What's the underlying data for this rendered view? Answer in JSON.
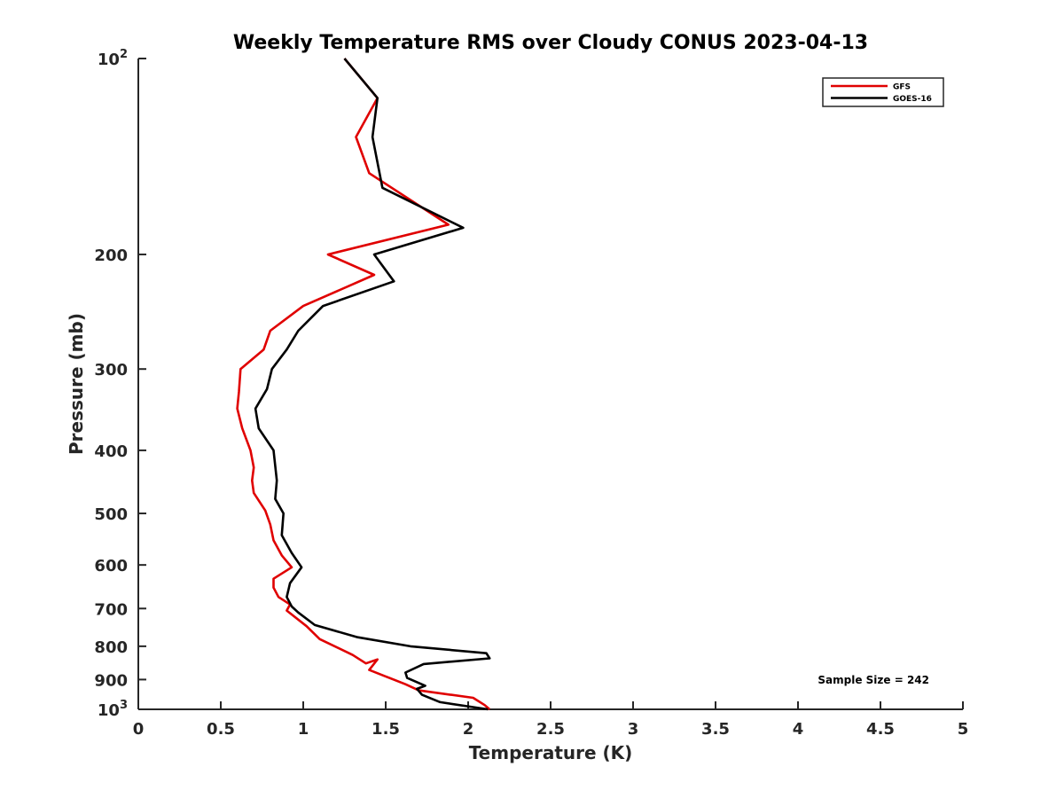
{
  "chart_data": {
    "type": "line",
    "title": "Weekly Temperature RMS over Cloudy CONUS 2023-04-13",
    "xlabel": "Temperature (K)",
    "ylabel": "Pressure (mb)",
    "xlim": [
      0,
      5
    ],
    "ylim": [
      100,
      1000
    ],
    "y_scale": "log",
    "y_reversed": true,
    "grid": false,
    "legend_position": "top-right",
    "x_ticks": [
      {
        "value": 0,
        "label": "0"
      },
      {
        "value": 0.5,
        "label": "0.5"
      },
      {
        "value": 1,
        "label": "1"
      },
      {
        "value": 1.5,
        "label": "1.5"
      },
      {
        "value": 2,
        "label": "2"
      },
      {
        "value": 2.5,
        "label": "2.5"
      },
      {
        "value": 3,
        "label": "3"
      },
      {
        "value": 3.5,
        "label": "3.5"
      },
      {
        "value": 4,
        "label": "4"
      },
      {
        "value": 4.5,
        "label": "4.5"
      },
      {
        "value": 5,
        "label": "5"
      }
    ],
    "y_ticks": [
      {
        "value": 100,
        "base": "10",
        "exp": "2"
      },
      {
        "value": 200,
        "label": "200"
      },
      {
        "value": 300,
        "label": "300"
      },
      {
        "value": 400,
        "label": "400"
      },
      {
        "value": 500,
        "label": "500"
      },
      {
        "value": 600,
        "label": "600"
      },
      {
        "value": 700,
        "label": "700"
      },
      {
        "value": 800,
        "label": "800"
      },
      {
        "value": 900,
        "label": "900"
      },
      {
        "value": 1000,
        "base": "10",
        "exp": "3"
      }
    ],
    "series": [
      {
        "name": "GFS",
        "color": "#e00000",
        "points": [
          [
            1.25,
            100
          ],
          [
            1.45,
            115
          ],
          [
            1.32,
            132
          ],
          [
            1.4,
            150
          ],
          [
            1.88,
            180
          ],
          [
            1.15,
            200
          ],
          [
            1.43,
            215
          ],
          [
            1.0,
            240
          ],
          [
            0.8,
            262
          ],
          [
            0.76,
            280
          ],
          [
            0.62,
            300
          ],
          [
            0.61,
            325
          ],
          [
            0.6,
            345
          ],
          [
            0.63,
            370
          ],
          [
            0.68,
            400
          ],
          [
            0.7,
            425
          ],
          [
            0.69,
            445
          ],
          [
            0.7,
            465
          ],
          [
            0.77,
            495
          ],
          [
            0.8,
            520
          ],
          [
            0.82,
            550
          ],
          [
            0.87,
            580
          ],
          [
            0.93,
            605
          ],
          [
            0.82,
            630
          ],
          [
            0.82,
            650
          ],
          [
            0.85,
            672
          ],
          [
            0.92,
            690
          ],
          [
            0.9,
            705
          ],
          [
            1.02,
            745
          ],
          [
            1.1,
            780
          ],
          [
            1.3,
            825
          ],
          [
            1.38,
            850
          ],
          [
            1.45,
            838
          ],
          [
            1.4,
            870
          ],
          [
            1.5,
            890
          ],
          [
            1.62,
            915
          ],
          [
            1.7,
            935
          ],
          [
            2.03,
            960
          ],
          [
            2.1,
            985
          ],
          [
            2.13,
            1000
          ]
        ]
      },
      {
        "name": "GOES-16",
        "color": "#000000",
        "points": [
          [
            1.25,
            100
          ],
          [
            1.45,
            115
          ],
          [
            1.42,
            132
          ],
          [
            1.48,
            158
          ],
          [
            1.97,
            182
          ],
          [
            1.43,
            200
          ],
          [
            1.55,
            220
          ],
          [
            1.12,
            240
          ],
          [
            1.05,
            250
          ],
          [
            0.97,
            262
          ],
          [
            0.9,
            280
          ],
          [
            0.81,
            300
          ],
          [
            0.78,
            322
          ],
          [
            0.71,
            345
          ],
          [
            0.73,
            370
          ],
          [
            0.82,
            400
          ],
          [
            0.84,
            445
          ],
          [
            0.83,
            475
          ],
          [
            0.88,
            500
          ],
          [
            0.87,
            540
          ],
          [
            0.93,
            575
          ],
          [
            0.99,
            605
          ],
          [
            0.92,
            640
          ],
          [
            0.9,
            672
          ],
          [
            0.93,
            695
          ],
          [
            0.97,
            710
          ],
          [
            1.07,
            742
          ],
          [
            1.33,
            775
          ],
          [
            1.65,
            800
          ],
          [
            2.11,
            820
          ],
          [
            2.13,
            835
          ],
          [
            1.73,
            852
          ],
          [
            1.62,
            878
          ],
          [
            1.63,
            895
          ],
          [
            1.74,
            920
          ],
          [
            1.69,
            930
          ],
          [
            1.72,
            950
          ],
          [
            1.83,
            975
          ],
          [
            2.12,
            1000
          ]
        ]
      }
    ],
    "annotation": "Sample Size = 242"
  }
}
